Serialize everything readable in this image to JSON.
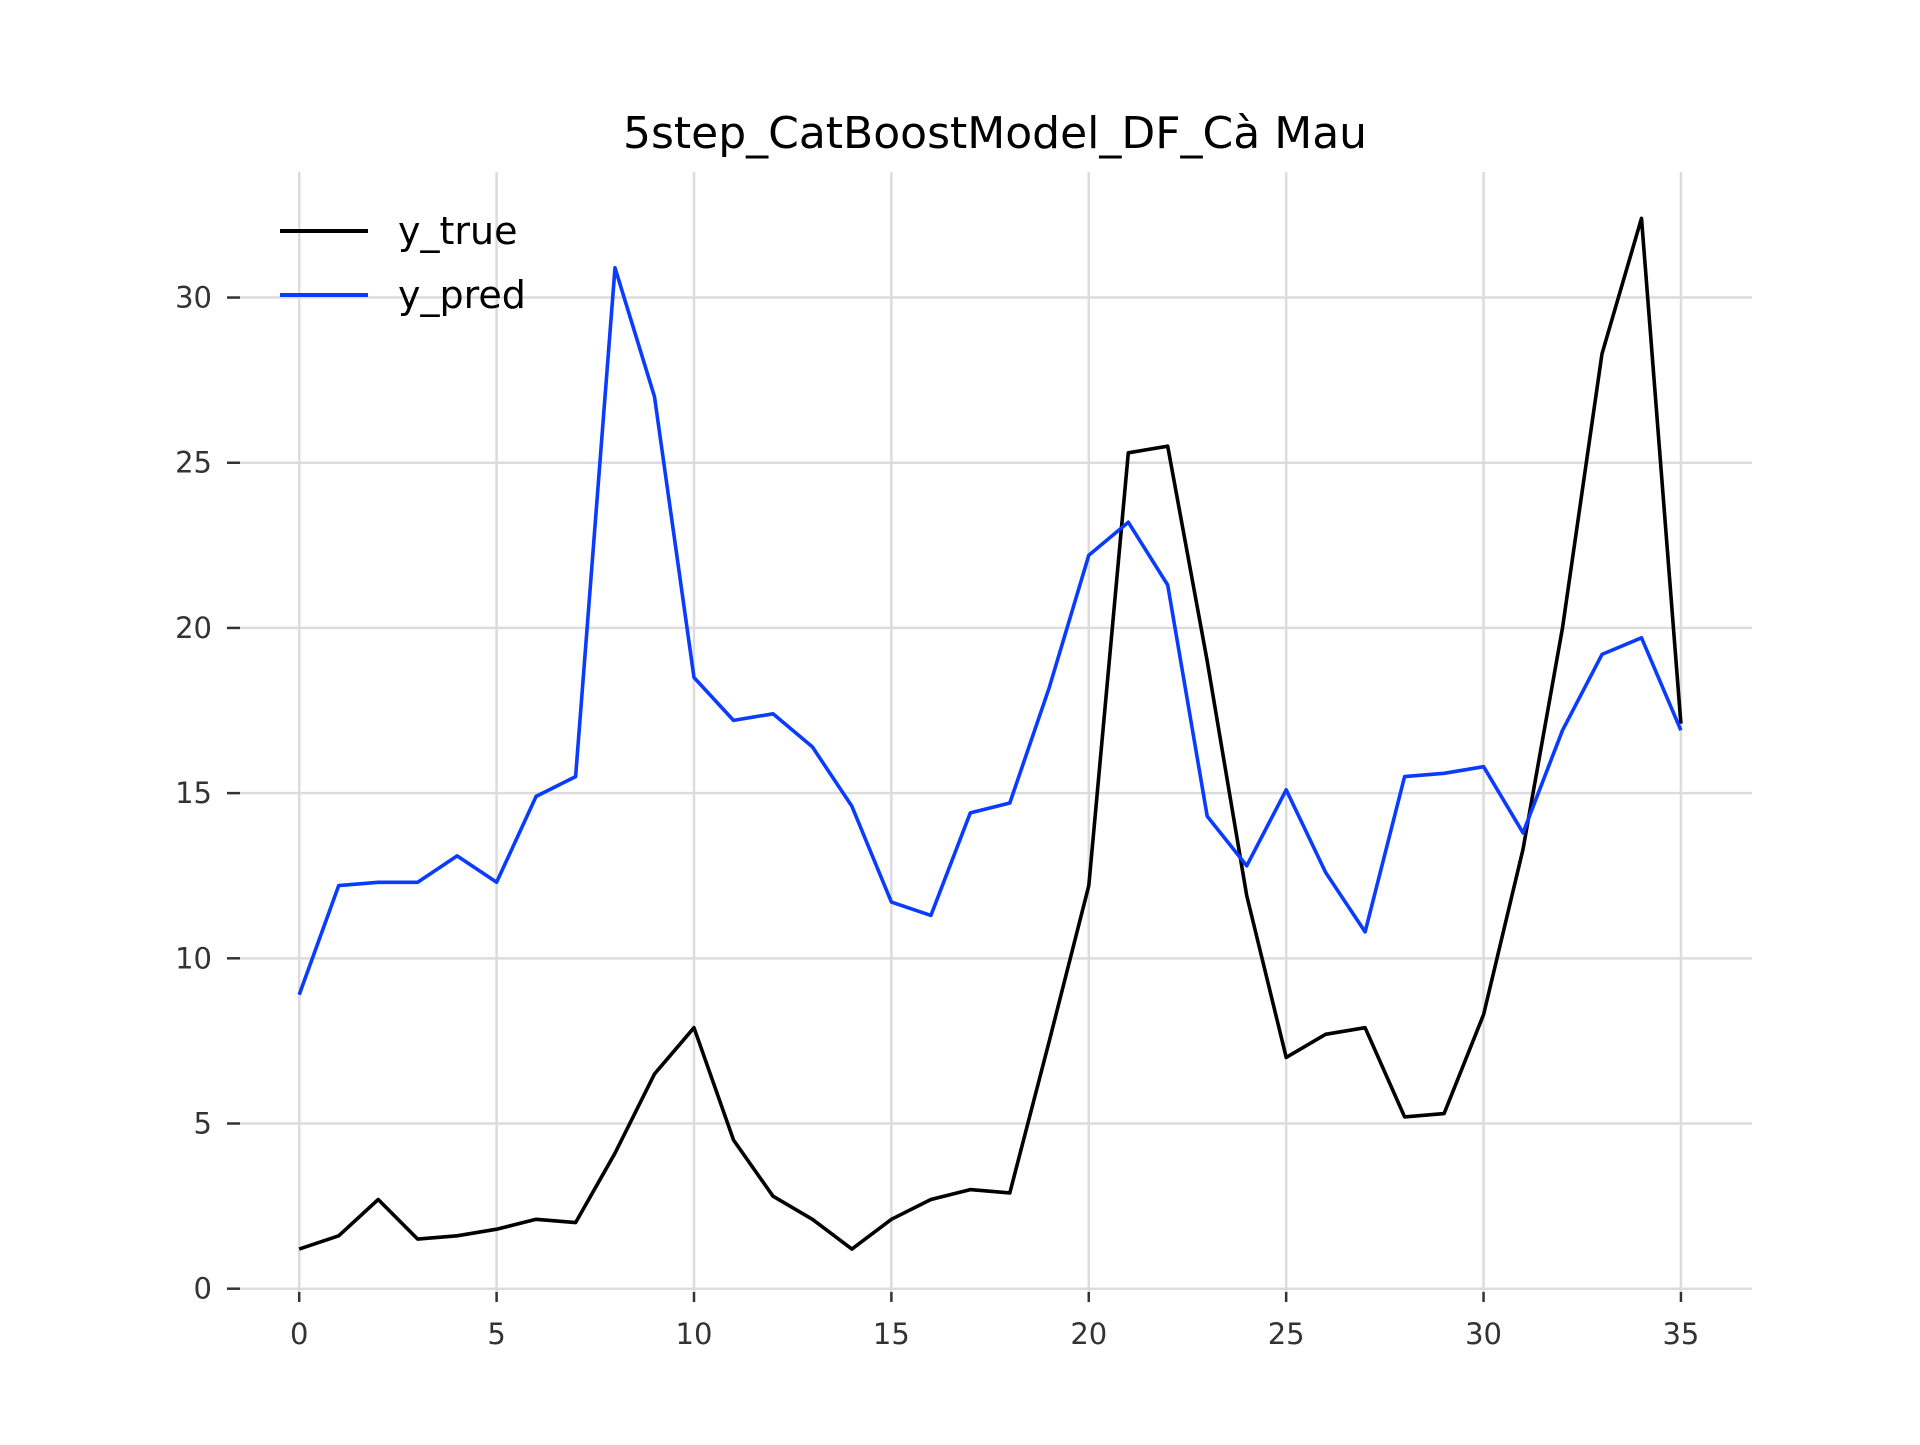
{
  "chart_data": {
    "type": "line",
    "title": "5step_CatBoostModel_DF_Cà Mau",
    "xlabel": "",
    "ylabel": "",
    "xlim": [
      -1.5,
      36.8
    ],
    "ylim": [
      -0.1,
      33.8
    ],
    "xticks": [
      0,
      5,
      10,
      15,
      20,
      25,
      30,
      35
    ],
    "yticks": [
      0,
      5,
      10,
      15,
      20,
      25,
      30
    ],
    "grid": true,
    "legend_position": "top-left",
    "x": [
      0,
      1,
      2,
      3,
      4,
      5,
      6,
      7,
      8,
      9,
      10,
      11,
      12,
      13,
      14,
      15,
      16,
      17,
      18,
      19,
      20,
      21,
      22,
      23,
      24,
      25,
      26,
      27,
      28,
      29,
      30,
      31,
      32,
      33,
      34,
      35
    ],
    "series": [
      {
        "name": "y_true",
        "color": "#000000",
        "values": [
          1.2,
          1.6,
          2.7,
          1.5,
          1.6,
          1.8,
          2.1,
          2.0,
          4.1,
          6.5,
          7.9,
          4.5,
          2.8,
          2.1,
          1.2,
          2.1,
          2.7,
          3.0,
          2.9,
          7.5,
          12.2,
          25.3,
          25.5,
          19.0,
          11.9,
          7.0,
          7.7,
          7.9,
          5.2,
          5.3,
          8.3,
          13.3,
          20.0,
          28.3,
          32.4,
          17.1
        ]
      },
      {
        "name": "y_pred",
        "color": "#0a3cff",
        "values": [
          8.9,
          12.2,
          12.3,
          12.3,
          13.1,
          12.3,
          14.9,
          15.5,
          30.9,
          27.0,
          18.5,
          17.2,
          17.4,
          16.4,
          14.6,
          11.7,
          11.3,
          14.4,
          14.7,
          18.2,
          22.2,
          23.2,
          21.3,
          14.3,
          12.8,
          15.1,
          12.6,
          10.8,
          15.5,
          15.6,
          15.8,
          13.8,
          16.9,
          19.2,
          19.7,
          16.9
        ]
      }
    ]
  }
}
